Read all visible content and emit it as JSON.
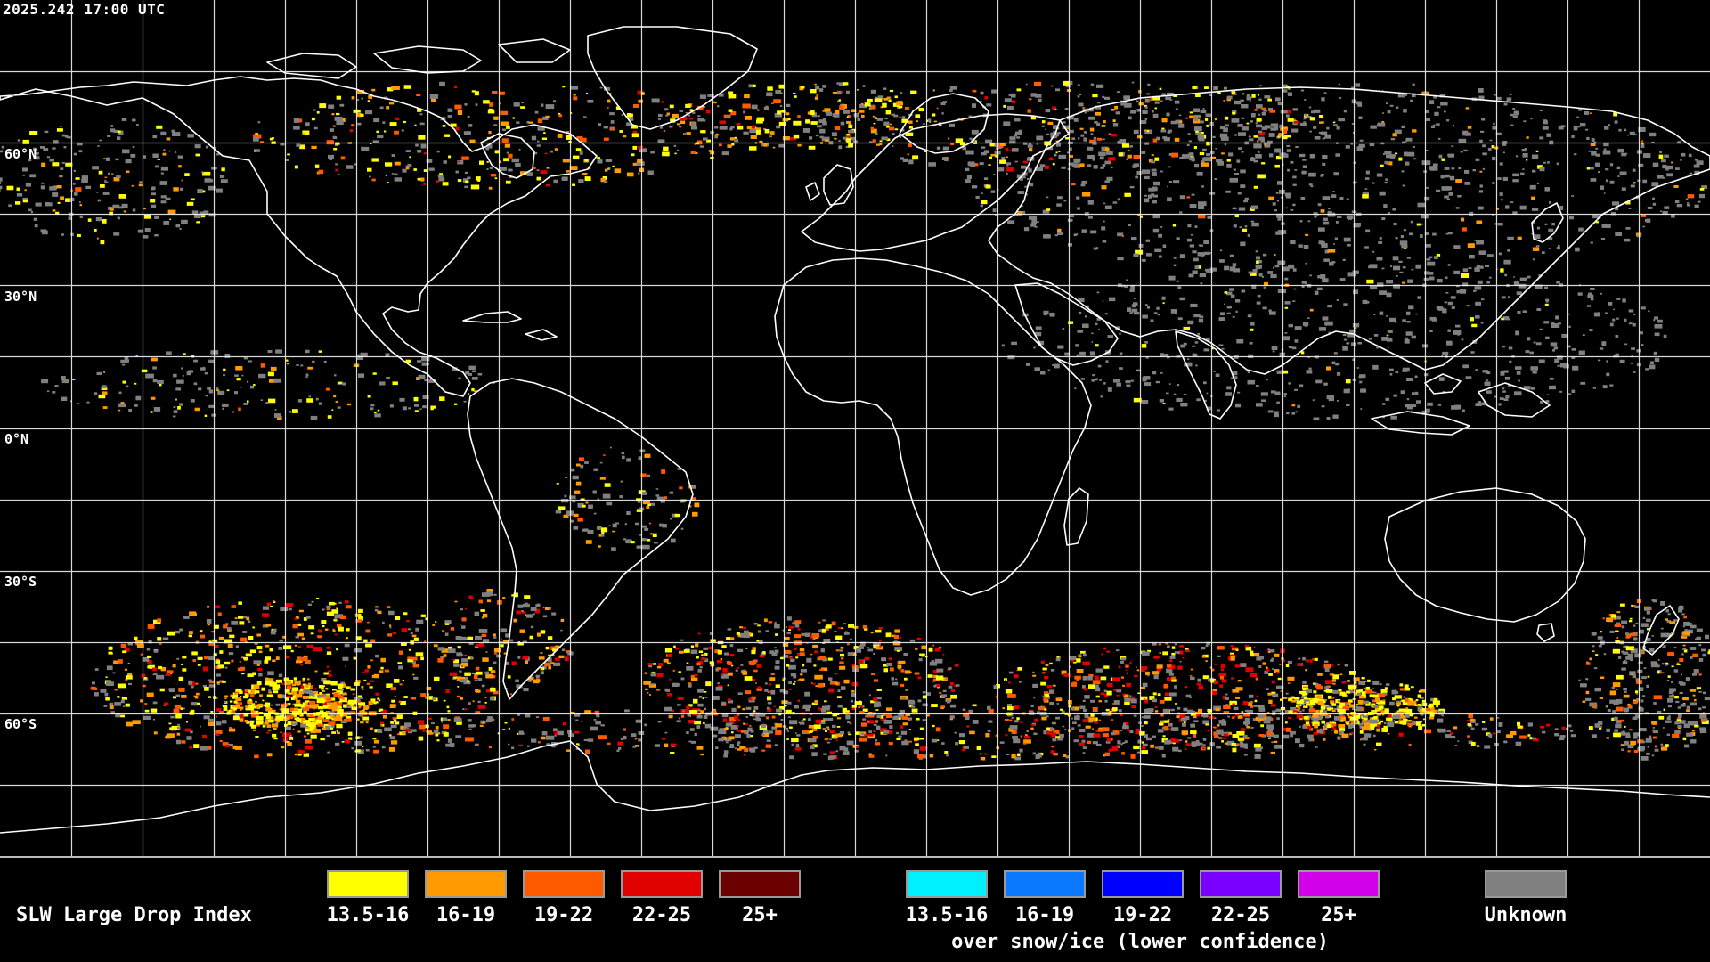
{
  "timestamp": "2025.242 17:00 UTC",
  "latitude_labels": [
    "60°N",
    "30°N",
    "0°N",
    "30°S",
    "60°S"
  ],
  "legend": {
    "title": "SLW Large Drop Index",
    "liquid": [
      {
        "label": "13.5-16",
        "color": "#ffff00"
      },
      {
        "label": "16-19",
        "color": "#ff9a00"
      },
      {
        "label": "19-22",
        "color": "#ff5a00"
      },
      {
        "label": "22-25",
        "color": "#e00000"
      },
      {
        "label": "25+",
        "color": "#6a0000"
      }
    ],
    "snow_ice": [
      {
        "label": "13.5-16",
        "color": "#00f0ff"
      },
      {
        "label": "16-19",
        "color": "#0a78ff"
      },
      {
        "label": "19-22",
        "color": "#0000ff"
      },
      {
        "label": "22-25",
        "color": "#7a00ff"
      },
      {
        "label": "25+",
        "color": "#d000e8"
      }
    ],
    "snow_ice_caption": "over snow/ice (lower confidence)",
    "unknown": {
      "label": "Unknown",
      "color": "#808080"
    }
  },
  "map": {
    "background_color": "#000000",
    "coastline_color": "#ffffff",
    "grid_color": "#ffffff",
    "grid_spacing_degrees": 15,
    "projection": "equirectangular",
    "lon_range": [
      -180,
      180
    ],
    "lat_range": [
      -90,
      90
    ]
  }
}
